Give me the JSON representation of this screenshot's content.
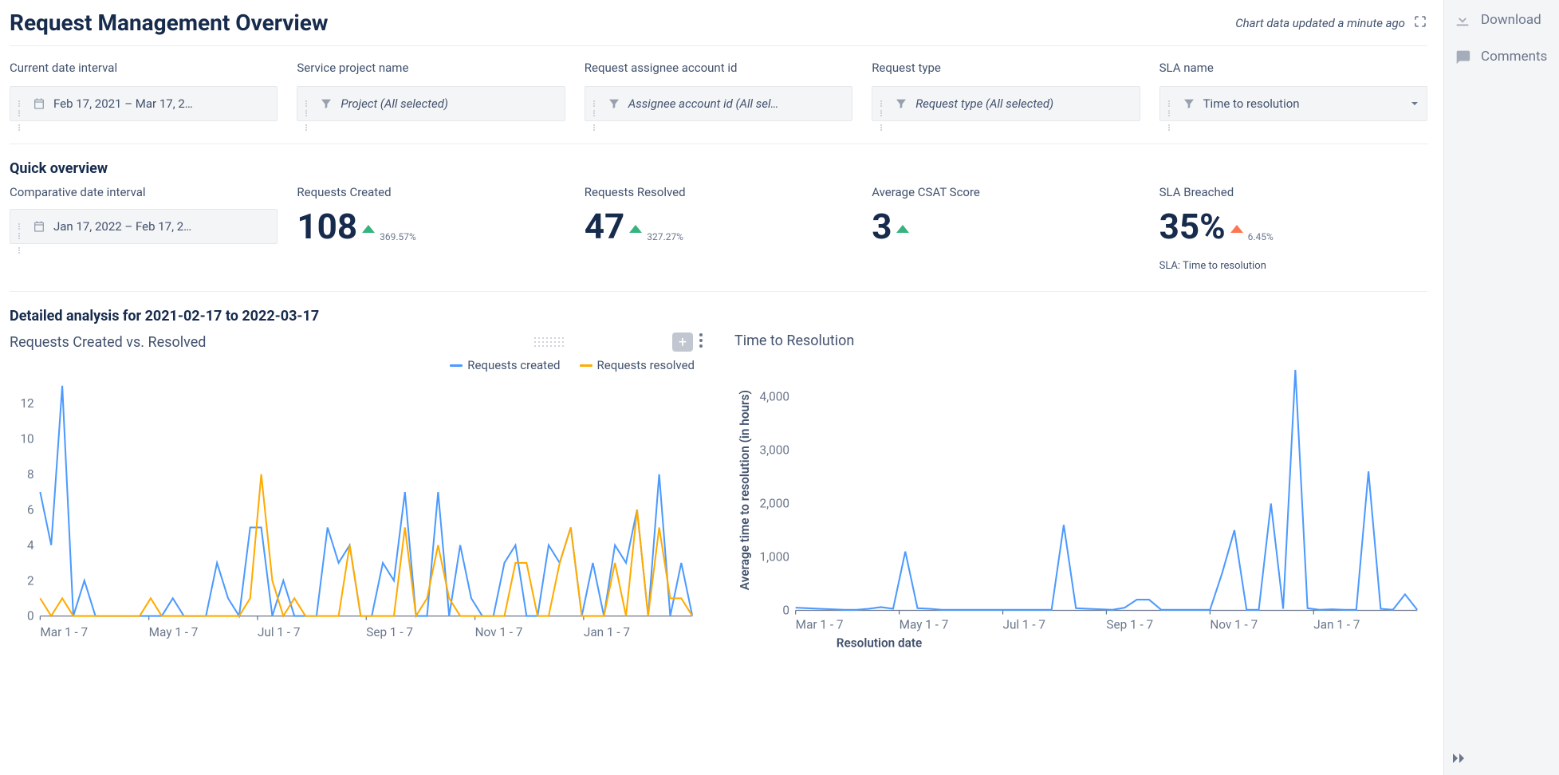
{
  "header": {
    "title": "Request Management Overview",
    "status": "Chart data updated a minute ago"
  },
  "sidebar": {
    "download": "Download",
    "comments": "Comments"
  },
  "filters": {
    "date_interval": {
      "label": "Current date interval",
      "value": "Feb 17, 2021  –  Mar 17, 2…"
    },
    "project": {
      "label": "Service project name",
      "value": "Project (All selected)"
    },
    "assignee": {
      "label": "Request assignee account id",
      "value": "Assignee account id (All sel…"
    },
    "request_type": {
      "label": "Request type",
      "value": "Request type (All selected)"
    },
    "sla_name": {
      "label": "SLA name",
      "value": "Time to resolution"
    }
  },
  "quick_overview": {
    "title": "Quick overview",
    "comparative_label": "Comparative date interval",
    "comparative_value": "Jan 17, 2022  –  Feb 17, 2…",
    "kpis": {
      "created": {
        "label": "Requests Created",
        "value": "108",
        "delta": "369.57%",
        "direction": "up-green"
      },
      "resolved": {
        "label": "Requests Resolved",
        "value": "47",
        "delta": "327.27%",
        "direction": "up-green"
      },
      "csat": {
        "label": "Average CSAT Score",
        "value": "3",
        "delta": "",
        "direction": "up-green"
      },
      "sla": {
        "label": "SLA Breached",
        "value": "35%",
        "delta": "6.45%",
        "direction": "up-red",
        "note": "SLA: Time to resolution"
      }
    }
  },
  "detailed": {
    "title": "Detailed analysis for 2021-02-17 to 2022-03-17"
  },
  "chart_left": {
    "title": "Requests Created vs. Resolved",
    "legend_created": "Requests created",
    "legend_resolved": "Requests resolved",
    "colors": {
      "created": "#4c9aff",
      "resolved": "#ffab00",
      "grid": "#e0e0e0",
      "axis_text": "#6b778c"
    },
    "y": {
      "min": 0,
      "max": 13,
      "ticks": [
        0,
        2,
        4,
        6,
        8,
        10,
        12
      ]
    },
    "x_ticks": [
      "Mar 1 - 7",
      "May 1 - 7",
      "Jul 1 - 7",
      "Sep 1 - 7",
      "Nov 1 - 7",
      "Jan 1 - 7"
    ],
    "created": [
      7,
      4,
      13,
      0,
      2,
      0,
      0,
      0,
      0,
      0,
      0,
      0,
      1,
      0,
      0,
      0,
      3,
      1,
      0,
      5,
      5,
      0,
      2,
      0,
      0,
      0,
      5,
      3,
      4,
      0,
      0,
      3,
      2,
      7,
      0,
      0,
      7,
      0,
      4,
      1,
      0,
      0,
      3,
      4,
      0,
      0,
      4,
      3,
      5,
      0,
      3,
      0,
      4,
      3,
      6,
      0,
      8,
      0,
      3,
      0
    ],
    "resolved": [
      1,
      0,
      1,
      0,
      0,
      0,
      0,
      0,
      0,
      0,
      1,
      0,
      0,
      0,
      0,
      0,
      0,
      0,
      0,
      1,
      8,
      2,
      0,
      1,
      0,
      0,
      0,
      0,
      4,
      0,
      0,
      0,
      0,
      5,
      0,
      1,
      4,
      1,
      0,
      0,
      0,
      0,
      0,
      3,
      3,
      0,
      0,
      3,
      5,
      0,
      0,
      0,
      3,
      0,
      6,
      0,
      5,
      1,
      1,
      0
    ]
  },
  "chart_right": {
    "title": "Time to Resolution",
    "y_label": "Average time to resolution (in hours)",
    "x_label": "Resolution date",
    "colors": {
      "line": "#4c9aff",
      "grid": "#e0e0e0",
      "axis_text": "#6b778c"
    },
    "y": {
      "min": 0,
      "max": 4500,
      "ticks": [
        0,
        1000,
        2000,
        3000,
        4000
      ]
    },
    "x_ticks": [
      "Mar 1 - 7",
      "May 1 - 7",
      "Jul 1 - 7",
      "Sep 1 - 7",
      "Nov 1 - 7",
      "Jan 1 - 7"
    ],
    "values": [
      50,
      40,
      30,
      20,
      10,
      10,
      30,
      60,
      30,
      1100,
      40,
      30,
      10,
      10,
      10,
      10,
      10,
      10,
      10,
      10,
      10,
      10,
      1600,
      40,
      30,
      20,
      10,
      50,
      200,
      200,
      10,
      10,
      10,
      10,
      10,
      700,
      1500,
      10,
      10,
      2000,
      30,
      4500,
      40,
      10,
      20,
      10,
      10,
      2600,
      30,
      10,
      300,
      10
    ]
  }
}
